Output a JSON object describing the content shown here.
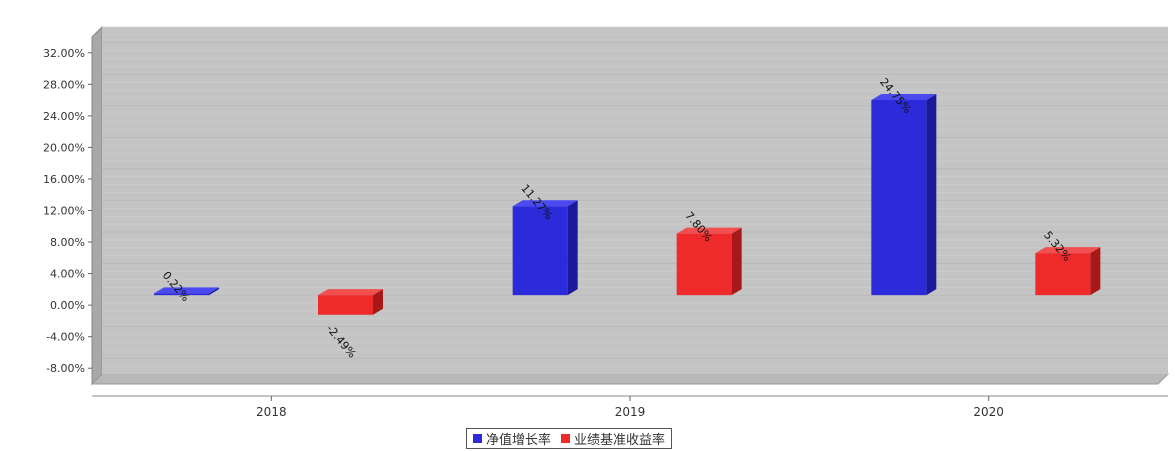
{
  "chart_data": {
    "type": "bar",
    "title": "",
    "xlabel": "",
    "ylabel": "",
    "categories": [
      "2018",
      "2019",
      "2020"
    ],
    "series": [
      {
        "name": "净值增长率",
        "values": [
          0.22,
          11.27,
          24.75
        ],
        "labels": [
          "0.22%",
          "11.27%",
          "24.75%"
        ],
        "color": "#2b2bdc",
        "side_color": "#1a1a9a",
        "top_color": "#4a4af0"
      },
      {
        "name": "业绩基准收益率",
        "values": [
          -2.49,
          7.8,
          5.32
        ],
        "labels": [
          "-2.49%",
          "7.80%",
          "5.32%"
        ],
        "color": "#ee2a2a",
        "side_color": "#a81818",
        "top_color": "#f25050"
      }
    ],
    "ylim": [
      -10,
      34
    ],
    "yticks": [
      32,
      28,
      24,
      20,
      16,
      12,
      8,
      4,
      0,
      -4,
      -8
    ],
    "ytick_labels": [
      "32.00%",
      "28.00%",
      "24.00%",
      "20.00%",
      "16.00%",
      "12.00%",
      "8.00%",
      "4.00%",
      "0.00%",
      "-4.00%",
      "-8.00%"
    ],
    "grid": true,
    "legend": "bottom-center",
    "plot_background": "#c4c4c4"
  }
}
